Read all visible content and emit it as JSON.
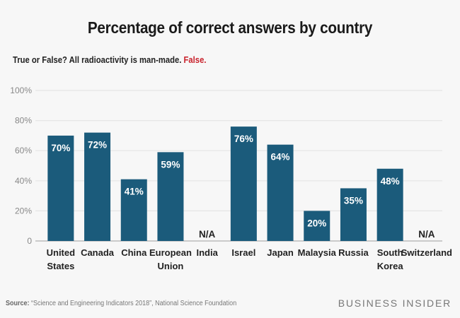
{
  "chart_data": {
    "type": "bar",
    "title": "Percentage of correct answers by country",
    "subtitle": "True or False? All radioactivity is man-made.",
    "answer": "False.",
    "categories": [
      [
        "United",
        "States"
      ],
      [
        "Canada"
      ],
      [
        "China"
      ],
      [
        "European",
        "Union"
      ],
      [
        "India"
      ],
      [
        "Israel"
      ],
      [
        "Japan"
      ],
      [
        "Malaysia"
      ],
      [
        "Russia"
      ],
      [
        "South",
        "Korea"
      ],
      [
        "Switzerland"
      ]
    ],
    "values": [
      70,
      72,
      41,
      59,
      null,
      76,
      64,
      20,
      35,
      48,
      null
    ],
    "data_labels": [
      "70%",
      "72%",
      "41%",
      "59%",
      "N/A",
      "76%",
      "64%",
      "20%",
      "35%",
      "48%",
      "N/A"
    ],
    "ylim": [
      0,
      100
    ],
    "yticks": [
      0,
      20,
      40,
      60,
      80,
      100
    ],
    "ytick_labels": [
      "0",
      "20%",
      "40%",
      "60%",
      "80%",
      "100%"
    ],
    "grid": true,
    "xlabel": "",
    "ylabel": "",
    "colors": {
      "bar": "#1b5b7b",
      "answer": "#c8202a",
      "background": "#f7f7f7"
    }
  },
  "footer": {
    "source_label": "Source:",
    "source_text": " “Science and Engineering Indicators 2018”, National Science Foundation",
    "brand": "BUSINESS INSIDER"
  }
}
